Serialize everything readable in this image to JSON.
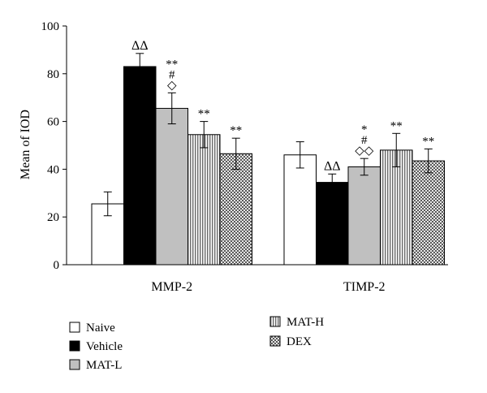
{
  "chart_data": {
    "type": "bar",
    "ylabel": "Mean of IOD",
    "ylim": [
      0,
      100
    ],
    "yticks": [
      0,
      20,
      40,
      60,
      80,
      100
    ],
    "categories": [
      "MMP-2",
      "TIMP-2"
    ],
    "series": [
      {
        "name": "Naive",
        "pattern": "white",
        "values": [
          25.5,
          46.0
        ],
        "errors": [
          5.0,
          5.5
        ]
      },
      {
        "name": "Vehicle",
        "pattern": "black",
        "values": [
          83.0,
          34.5
        ],
        "errors": [
          5.5,
          3.5
        ]
      },
      {
        "name": "MAT-L",
        "pattern": "gray",
        "values": [
          65.5,
          41.0
        ],
        "errors": [
          6.5,
          3.5
        ]
      },
      {
        "name": "MAT-H",
        "pattern": "vstripes",
        "values": [
          54.5,
          48.0
        ],
        "errors": [
          5.5,
          7.0
        ]
      },
      {
        "name": "DEX",
        "pattern": "checker",
        "values": [
          46.5,
          43.5
        ],
        "errors": [
          6.5,
          5.0
        ]
      }
    ],
    "annotations": [
      {
        "category": 0,
        "series": 1,
        "lines": [
          "ΔΔ"
        ]
      },
      {
        "category": 0,
        "series": 2,
        "lines": [
          "**",
          "#",
          "◇"
        ]
      },
      {
        "category": 0,
        "series": 3,
        "lines": [
          "**"
        ]
      },
      {
        "category": 0,
        "series": 4,
        "lines": [
          "**"
        ]
      },
      {
        "category": 1,
        "series": 1,
        "lines": [
          "ΔΔ"
        ]
      },
      {
        "category": 1,
        "series": 2,
        "lines": [
          "*",
          "#",
          "◇◇"
        ]
      },
      {
        "category": 1,
        "series": 3,
        "lines": [
          "**"
        ]
      },
      {
        "category": 1,
        "series": 4,
        "lines": [
          "**"
        ]
      }
    ],
    "legend_position": "bottom",
    "colors": {
      "bar_outline": "#000000",
      "gray_fill": "#c0c0c0",
      "black_fill": "#000000",
      "white_fill": "#ffffff"
    }
  }
}
